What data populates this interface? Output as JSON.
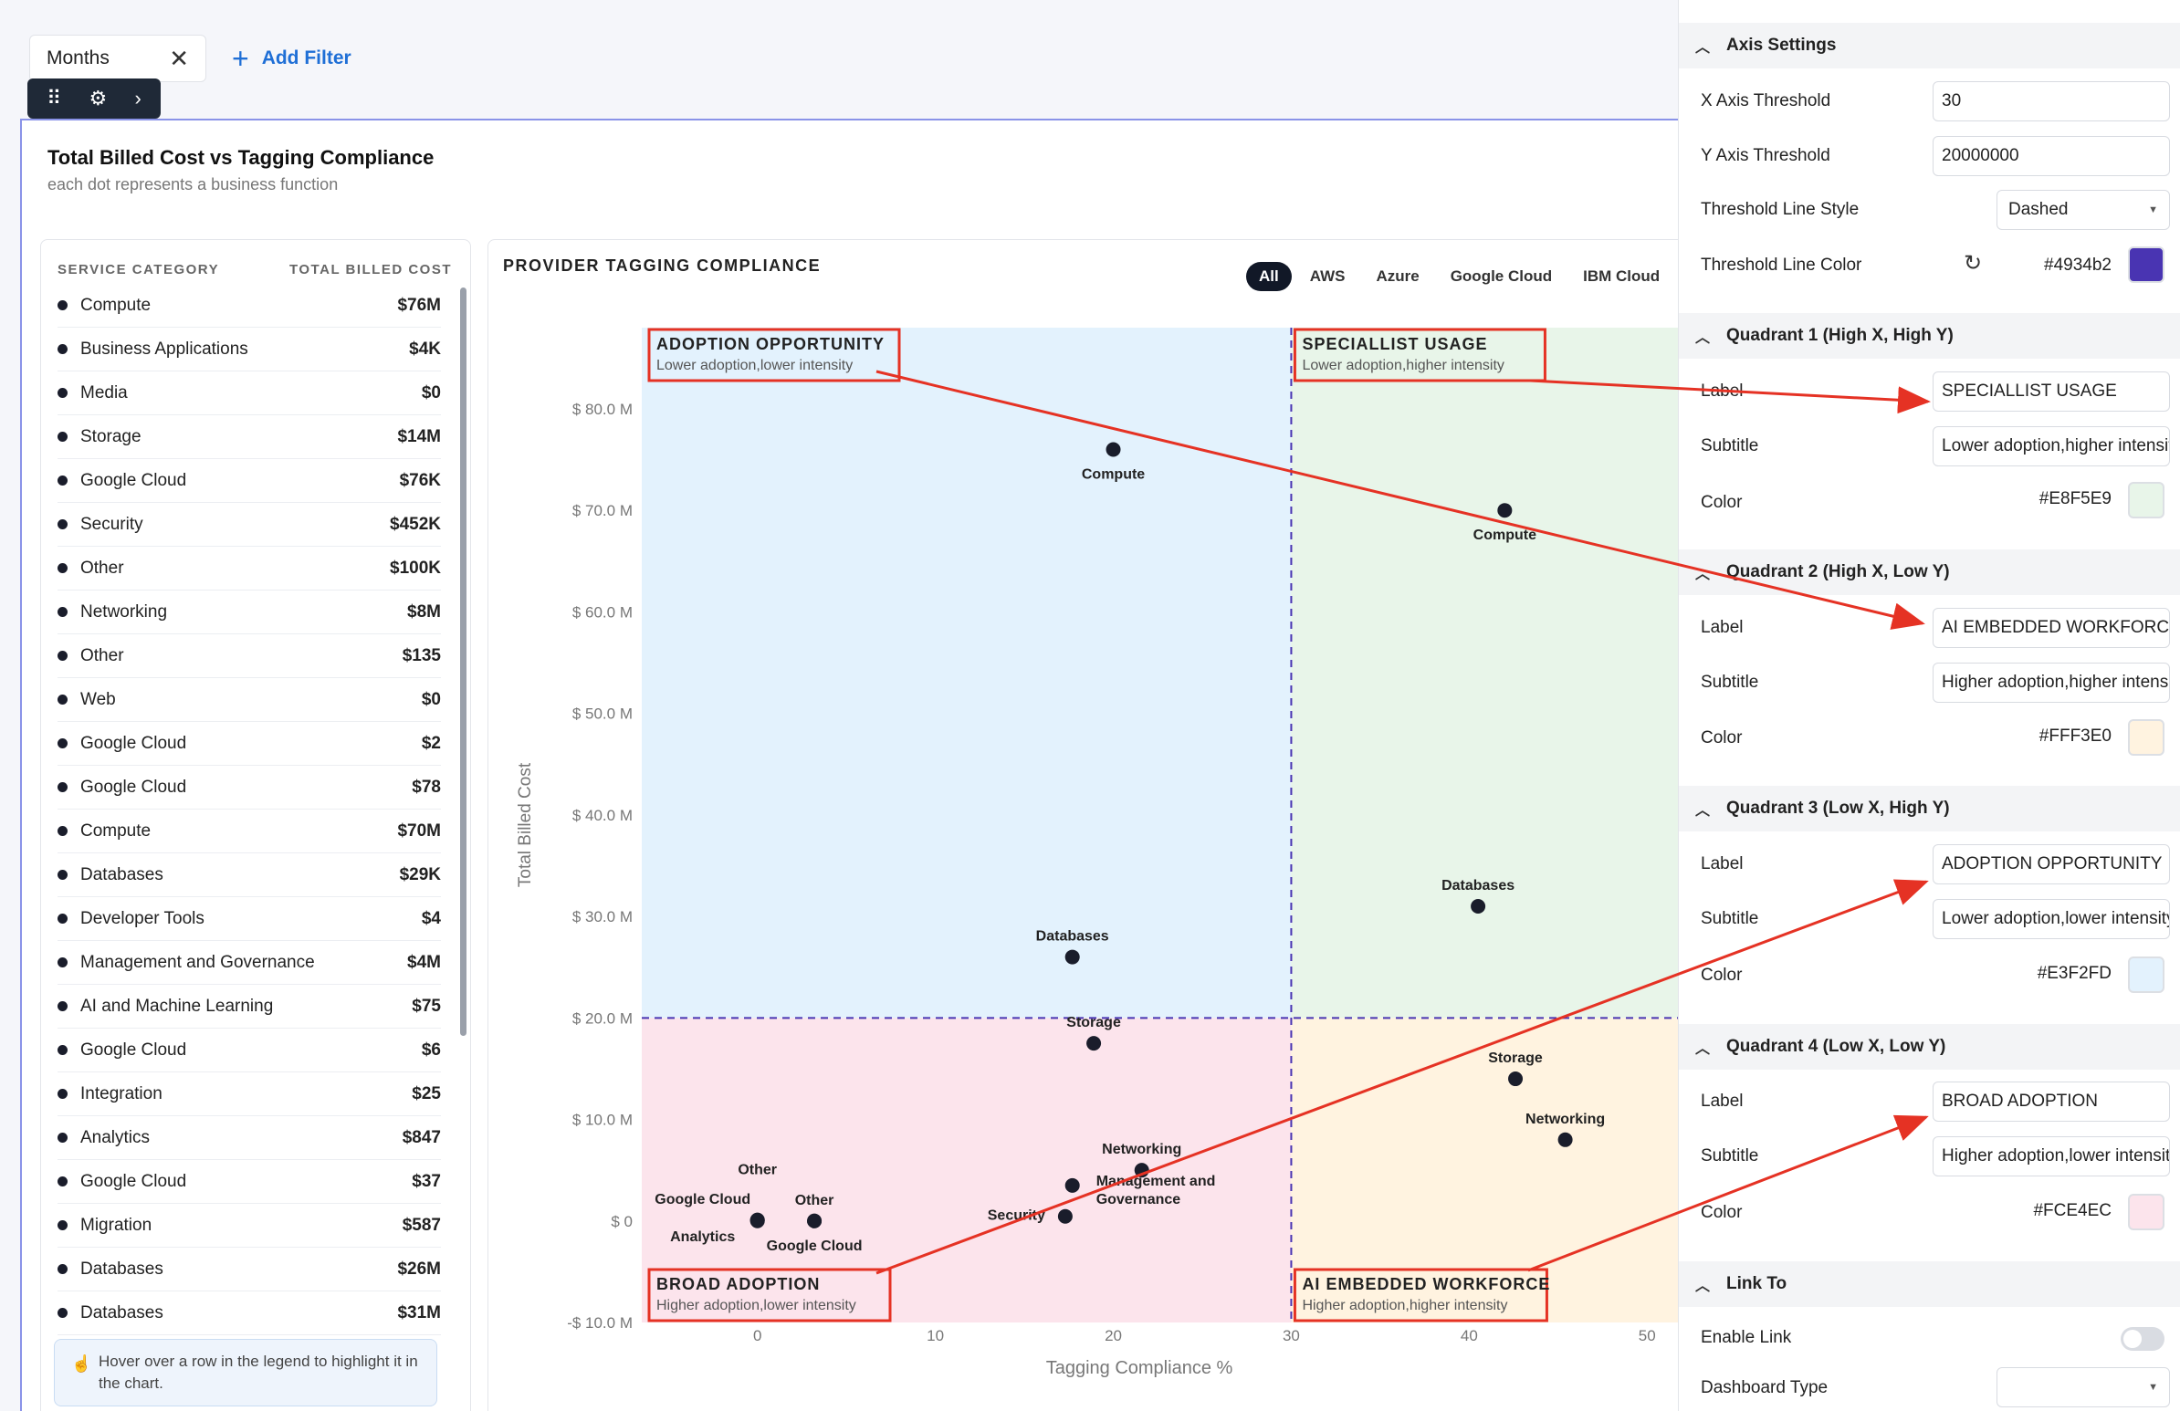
{
  "filter": {
    "chip_label": "Months",
    "add_label": "Add Filter"
  },
  "card": {
    "title": "Total Billed Cost vs Tagging Compliance",
    "subtitle": "each dot represents a business function"
  },
  "legend": {
    "col_category": "SERVICE CATEGORY",
    "col_cost": "TOTAL BILLED COST",
    "rows": [
      {
        "name": "Compute",
        "value": "$76M"
      },
      {
        "name": "Business Applications",
        "value": "$4K"
      },
      {
        "name": "Media",
        "value": "$0"
      },
      {
        "name": "Storage",
        "value": "$14M"
      },
      {
        "name": "Google Cloud",
        "value": "$76K"
      },
      {
        "name": "Security",
        "value": "$452K"
      },
      {
        "name": "Other",
        "value": "$100K"
      },
      {
        "name": "Networking",
        "value": "$8M"
      },
      {
        "name": "Other",
        "value": "$135"
      },
      {
        "name": "Web",
        "value": "$0"
      },
      {
        "name": "Google Cloud",
        "value": "$2"
      },
      {
        "name": "Google Cloud",
        "value": "$78"
      },
      {
        "name": "Compute",
        "value": "$70M"
      },
      {
        "name": "Databases",
        "value": "$29K"
      },
      {
        "name": "Developer Tools",
        "value": "$4"
      },
      {
        "name": "Management and Governance",
        "value": "$4M"
      },
      {
        "name": "AI and Machine Learning",
        "value": "$75"
      },
      {
        "name": "Google Cloud",
        "value": "$6"
      },
      {
        "name": "Integration",
        "value": "$25"
      },
      {
        "name": "Analytics",
        "value": "$847"
      },
      {
        "name": "Google Cloud",
        "value": "$37"
      },
      {
        "name": "Migration",
        "value": "$587"
      },
      {
        "name": "Databases",
        "value": "$26M"
      },
      {
        "name": "Databases",
        "value": "$31M"
      }
    ],
    "hint": "Hover over a row in the legend to highlight it in the chart."
  },
  "chart_panel": {
    "title": "PROVIDER TAGGING COMPLIANCE",
    "tabs": [
      "All",
      "AWS",
      "Azure",
      "Google Cloud",
      "IBM Cloud"
    ],
    "active_tab": "All"
  },
  "chart_data": {
    "type": "scatter",
    "title": "PROVIDER TAGGING COMPLIANCE",
    "xlabel": "Tagging Compliance %",
    "ylabel": "Total Billed Cost",
    "xlim": [
      -6.5,
      52.5
    ],
    "ylim": [
      -10000000,
      88000000
    ],
    "x_ticks": [
      0,
      10,
      20,
      30,
      40,
      50
    ],
    "y_ticks": [
      -10000000,
      0,
      10000000,
      20000000,
      30000000,
      40000000,
      50000000,
      60000000,
      70000000,
      80000000
    ],
    "y_tick_labels": [
      "-$ 10.0 M",
      "$ 0",
      "$ 10.0 M",
      "$ 20.0 M",
      "$ 30.0 M",
      "$ 40.0 M",
      "$ 50.0 M",
      "$ 60.0 M",
      "$ 70.0 M",
      "$ 80.0 M"
    ],
    "threshold_x": 30,
    "threshold_y": 20000000,
    "threshold_style": "dashed",
    "threshold_color": "#4934b2",
    "quadrants": [
      {
        "pos": "top-left",
        "label": "ADOPTION OPPORTUNITY",
        "subtitle": "Lower adoption,lower intensity",
        "color": "#E3F2FD"
      },
      {
        "pos": "top-right",
        "label": "SPECIALLIST USAGE",
        "subtitle": "Lower adoption,higher intensity",
        "color": "#E8F5E9"
      },
      {
        "pos": "bottom-left",
        "label": "BROAD ADOPTION",
        "subtitle": "Higher adoption,lower intensity",
        "color": "#FCE4EC"
      },
      {
        "pos": "bottom-right",
        "label": "AI EMBEDDED WORKFORCE",
        "subtitle": "Higher adoption,higher intensity",
        "color": "#FFF3E0"
      }
    ],
    "points": [
      {
        "label": "Compute",
        "x": 20,
        "y": 76000000,
        "lpos": "below"
      },
      {
        "label": "Compute",
        "x": 42,
        "y": 70000000,
        "lpos": "below"
      },
      {
        "label": "Databases",
        "x": 17.7,
        "y": 26000000,
        "lpos": "above"
      },
      {
        "label": "Databases",
        "x": 40.5,
        "y": 31000000,
        "lpos": "above"
      },
      {
        "label": "Storage",
        "x": 18.9,
        "y": 17500000,
        "lpos": "above"
      },
      {
        "label": "Storage",
        "x": 42.6,
        "y": 14000000,
        "lpos": "above"
      },
      {
        "label": "Networking",
        "x": 21.6,
        "y": 5000000,
        "lpos": "above"
      },
      {
        "label": "Networking",
        "x": 45.4,
        "y": 8000000,
        "lpos": "above"
      },
      {
        "label": "Management and Governance",
        "x": 17.7,
        "y": 3500000,
        "lpos": "right"
      },
      {
        "label": "Security",
        "x": 17.3,
        "y": 452000,
        "lpos": "left"
      },
      {
        "label": "Other",
        "x": 0,
        "y": 100000,
        "lpos": "above-far"
      },
      {
        "label": "Google Cloud",
        "x": 0,
        "y": 76000,
        "lpos": "above-left"
      },
      {
        "label": "Analytics",
        "x": 0,
        "y": 847,
        "lpos": "below-left"
      },
      {
        "label": "Other",
        "x": 3.2,
        "y": 135,
        "lpos": "above"
      },
      {
        "label": "Google Cloud",
        "x": 3.2,
        "y": 78,
        "lpos": "below"
      }
    ]
  },
  "settings": {
    "axis_header": "Axis Settings",
    "x_threshold_label": "X Axis Threshold",
    "x_threshold_value": "30",
    "y_threshold_label": "Y Axis Threshold",
    "y_threshold_value": "20000000",
    "line_style_label": "Threshold Line Style",
    "line_style_value": "Dashed",
    "line_color_label": "Threshold Line Color",
    "line_color_value": "#4934b2",
    "q1": {
      "header": "Quadrant 1 (High X, High Y)",
      "label": "SPECIALLIST USAGE",
      "subtitle": "Lower adoption,higher intensity",
      "color": "#E8F5E9"
    },
    "q2": {
      "header": "Quadrant 2 (High X, Low Y)",
      "label": "AI EMBEDDED WORKFORCE",
      "subtitle": "Higher adoption,higher intensity",
      "color": "#FFF3E0"
    },
    "q3": {
      "header": "Quadrant 3 (Low X, High Y)",
      "label": "ADOPTION OPPORTUNITY",
      "subtitle": "Lower adoption,lower intensity",
      "color": "#E3F2FD"
    },
    "q4": {
      "header": "Quadrant 4 (Low X, Low Y)",
      "label": "BROAD ADOPTION",
      "subtitle": "Higher adoption,lower intensity",
      "color": "#FCE4EC"
    },
    "field_label": "Label",
    "field_subtitle": "Subtitle",
    "field_color": "Color",
    "link_header": "Link To",
    "enable_link_label": "Enable Link",
    "dashboard_type_label": "Dashboard Type",
    "dashboard_type_value": ""
  },
  "colors": {
    "accent": "#1f6fd6",
    "threshold": "#4934b2",
    "annotation": "#e53224",
    "dot": "#1a1d2b"
  }
}
